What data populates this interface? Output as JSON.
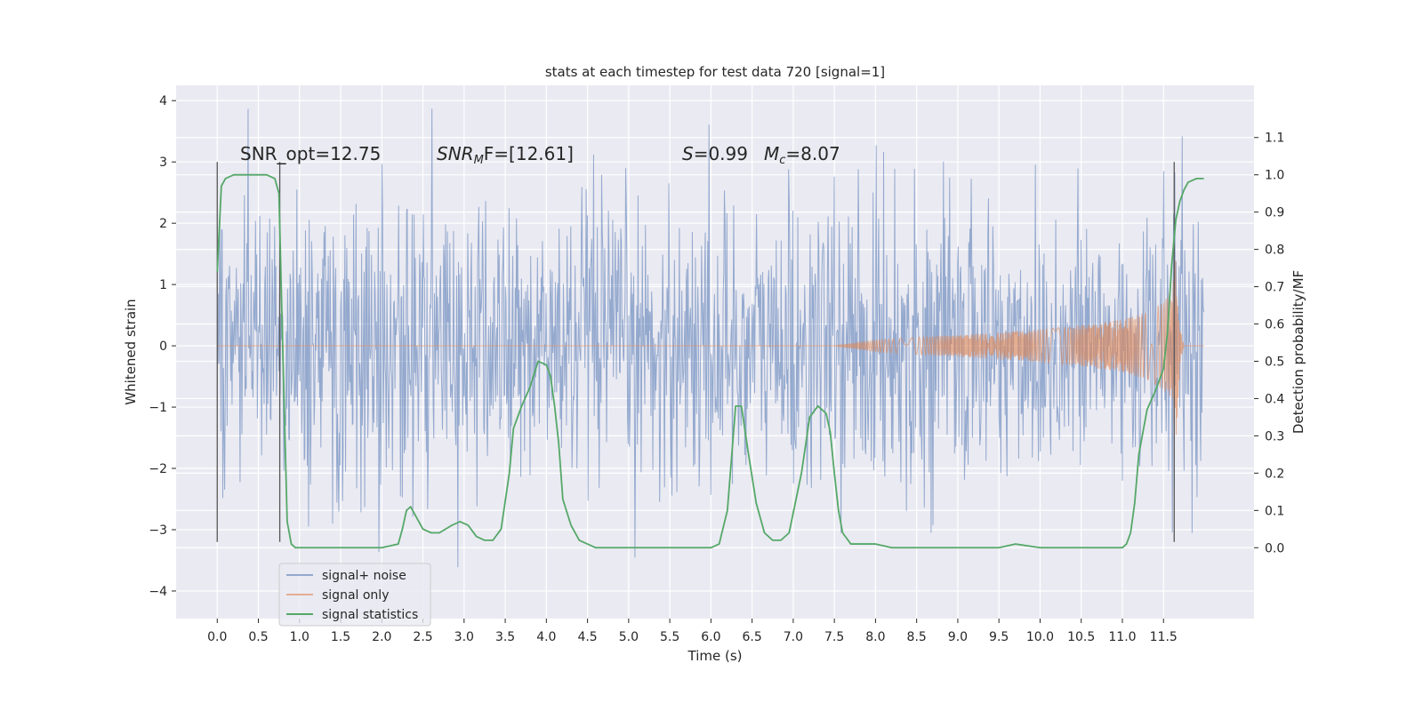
{
  "chart_data": {
    "type": "line",
    "title": "stats at each timestep for test data 720 [signal=1]",
    "xlabel": "Time (s)",
    "ylabel": "Whitened strain",
    "y2label": "Detection probability/MF",
    "xlim": [
      -0.5,
      12.6
    ],
    "ylim": [
      -4.45,
      4.25
    ],
    "y2lim": [
      -0.19,
      1.24
    ],
    "grid": true,
    "background": "#eaeaf2",
    "x_ticks": [
      "0.0",
      "0.5",
      "1.0",
      "1.5",
      "2.0",
      "2.5",
      "3.0",
      "3.5",
      "4.0",
      "4.5",
      "5.0",
      "5.5",
      "6.0",
      "6.5",
      "7.0",
      "7.5",
      "8.0",
      "8.5",
      "9.0",
      "9.5",
      "10.0",
      "10.5",
      "11.0",
      "11.5"
    ],
    "y_ticks": [
      "4",
      "3",
      "2",
      "1",
      "0",
      "−1",
      "−2",
      "−3",
      "−4"
    ],
    "y2_ticks": [
      "1.1",
      "1.0",
      "0.9",
      "0.8",
      "0.7",
      "0.6",
      "0.5",
      "0.4",
      "0.3",
      "0.2",
      "0.1",
      "0.0"
    ],
    "annotations": {
      "snr_opt": "SNR_opt=12.75",
      "snr_mf_main": "SNR",
      "snr_mf_sub": "M",
      "snr_mf_rest": "F=[12.61]",
      "s_label": "S",
      "s_value": "=0.99",
      "mc_label": "M",
      "mc_sub": "c",
      "mc_value": "=8.07"
    },
    "vertical_markers_x": [
      0.0,
      0.76,
      11.63
    ],
    "legend": {
      "placement": "lower-left",
      "entries": [
        "signal+ noise",
        "signal only",
        "signal statistics"
      ]
    },
    "series": [
      {
        "name": "signal+ noise",
        "color": "#4c72b0",
        "description": "whitened strain, approx. gaussian noise",
        "x_range": [
          0.0,
          11.99
        ],
        "typical_abs": 1.2,
        "extreme_range": [
          -4.05,
          3.87
        ]
      },
      {
        "name": "signal only",
        "color": "#dd8452",
        "x_range": [
          0.0,
          11.99
        ],
        "envelope": {
          "x": [
            0.0,
            7.5,
            8.0,
            8.5,
            9.0,
            9.5,
            10.0,
            10.5,
            11.0,
            11.3,
            11.5,
            11.6,
            11.65,
            11.7,
            11.75,
            11.99
          ],
          "amp": [
            0.0,
            0.0,
            0.1,
            0.14,
            0.18,
            0.22,
            0.27,
            0.33,
            0.43,
            0.55,
            0.72,
            0.9,
            1.6,
            0.3,
            0.0,
            0.0
          ]
        }
      },
      {
        "name": "signal statistics",
        "color": "#55a868",
        "axis": "right",
        "x": [
          0.0,
          0.05,
          0.1,
          0.2,
          0.3,
          0.6,
          0.7,
          0.75,
          0.8,
          0.85,
          0.9,
          0.95,
          1.05,
          1.5,
          2.0,
          2.2,
          2.25,
          2.3,
          2.35,
          2.4,
          2.5,
          2.6,
          2.7,
          2.85,
          2.95,
          3.05,
          3.15,
          3.25,
          3.35,
          3.45,
          3.55,
          3.6,
          3.7,
          3.8,
          3.9,
          4.0,
          4.05,
          4.1,
          4.15,
          4.2,
          4.3,
          4.4,
          4.6,
          5.0,
          5.5,
          6.0,
          6.1,
          6.2,
          6.3,
          6.37,
          6.45,
          6.55,
          6.65,
          6.75,
          6.85,
          6.95,
          7.1,
          7.2,
          7.3,
          7.4,
          7.45,
          7.5,
          7.55,
          7.6,
          7.7,
          7.8,
          7.9,
          8.0,
          8.2,
          8.5,
          9.0,
          9.5,
          9.7,
          10.0,
          10.5,
          11.0,
          11.05,
          11.1,
          11.15,
          11.2,
          11.3,
          11.4,
          11.5,
          11.55,
          11.6,
          11.65,
          11.7,
          11.75,
          11.8,
          11.9,
          11.99
        ],
        "y": [
          0.74,
          0.97,
          0.99,
          1.0,
          1.0,
          1.0,
          0.99,
          0.95,
          0.5,
          0.07,
          0.01,
          0.0,
          0.0,
          0.0,
          0.0,
          0.01,
          0.05,
          0.1,
          0.11,
          0.09,
          0.05,
          0.04,
          0.04,
          0.06,
          0.07,
          0.06,
          0.03,
          0.02,
          0.02,
          0.05,
          0.2,
          0.32,
          0.38,
          0.43,
          0.5,
          0.49,
          0.46,
          0.38,
          0.28,
          0.13,
          0.06,
          0.02,
          0.0,
          0.0,
          0.0,
          0.0,
          0.01,
          0.1,
          0.38,
          0.38,
          0.26,
          0.12,
          0.04,
          0.02,
          0.02,
          0.04,
          0.2,
          0.35,
          0.38,
          0.36,
          0.31,
          0.2,
          0.1,
          0.04,
          0.01,
          0.01,
          0.01,
          0.01,
          0.0,
          0.0,
          0.0,
          0.0,
          0.01,
          0.0,
          0.0,
          0.0,
          0.01,
          0.04,
          0.12,
          0.25,
          0.37,
          0.42,
          0.48,
          0.58,
          0.76,
          0.88,
          0.93,
          0.96,
          0.98,
          0.99,
          0.99
        ]
      }
    ]
  }
}
